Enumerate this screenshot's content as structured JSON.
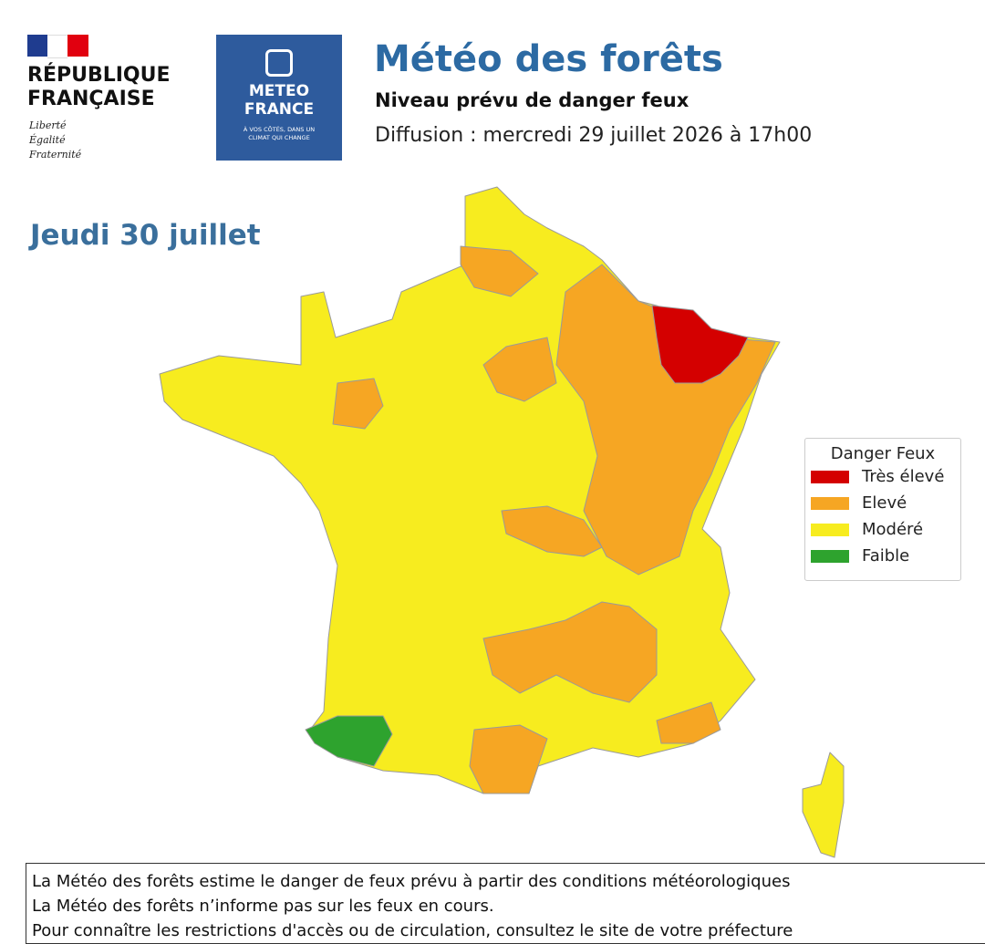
{
  "header": {
    "republique": [
      "RÉPUBLIQUE",
      "FRANÇAISE"
    ],
    "motto": [
      "Liberté",
      "Égalité",
      "Fraternité"
    ],
    "logo": {
      "name": [
        "METEO",
        "FRANCE"
      ],
      "tagline": [
        "À VOS CÔTÉS, DANS UN",
        "CLIMAT QUI CHANGE"
      ]
    },
    "title": "Météo des forêts",
    "subtitle": "Niveau prévu de danger feux",
    "diffusion": "Diffusion : mercredi 29 juillet 2026 à 17h00"
  },
  "map": {
    "day": "Jeudi 30 juillet"
  },
  "legend": {
    "title": "Danger Feux",
    "items": [
      {
        "label": "Très élevé",
        "color": "#d40000"
      },
      {
        "label": "Elevé",
        "color": "#f6a623"
      },
      {
        "label": "Modéré",
        "color": "#f7ec1f"
      },
      {
        "label": "Faible",
        "color": "#2ea32e"
      }
    ]
  },
  "footer": {
    "lines": [
      "La Météo des forêts estime le danger de feux prévu à partir des conditions météorologiques",
      "La Météo des forêts n’informe pas sur les feux en cours.",
      "Pour connaître les restrictions d'accès ou de circulation, consultez le site de votre préfecture"
    ]
  }
}
